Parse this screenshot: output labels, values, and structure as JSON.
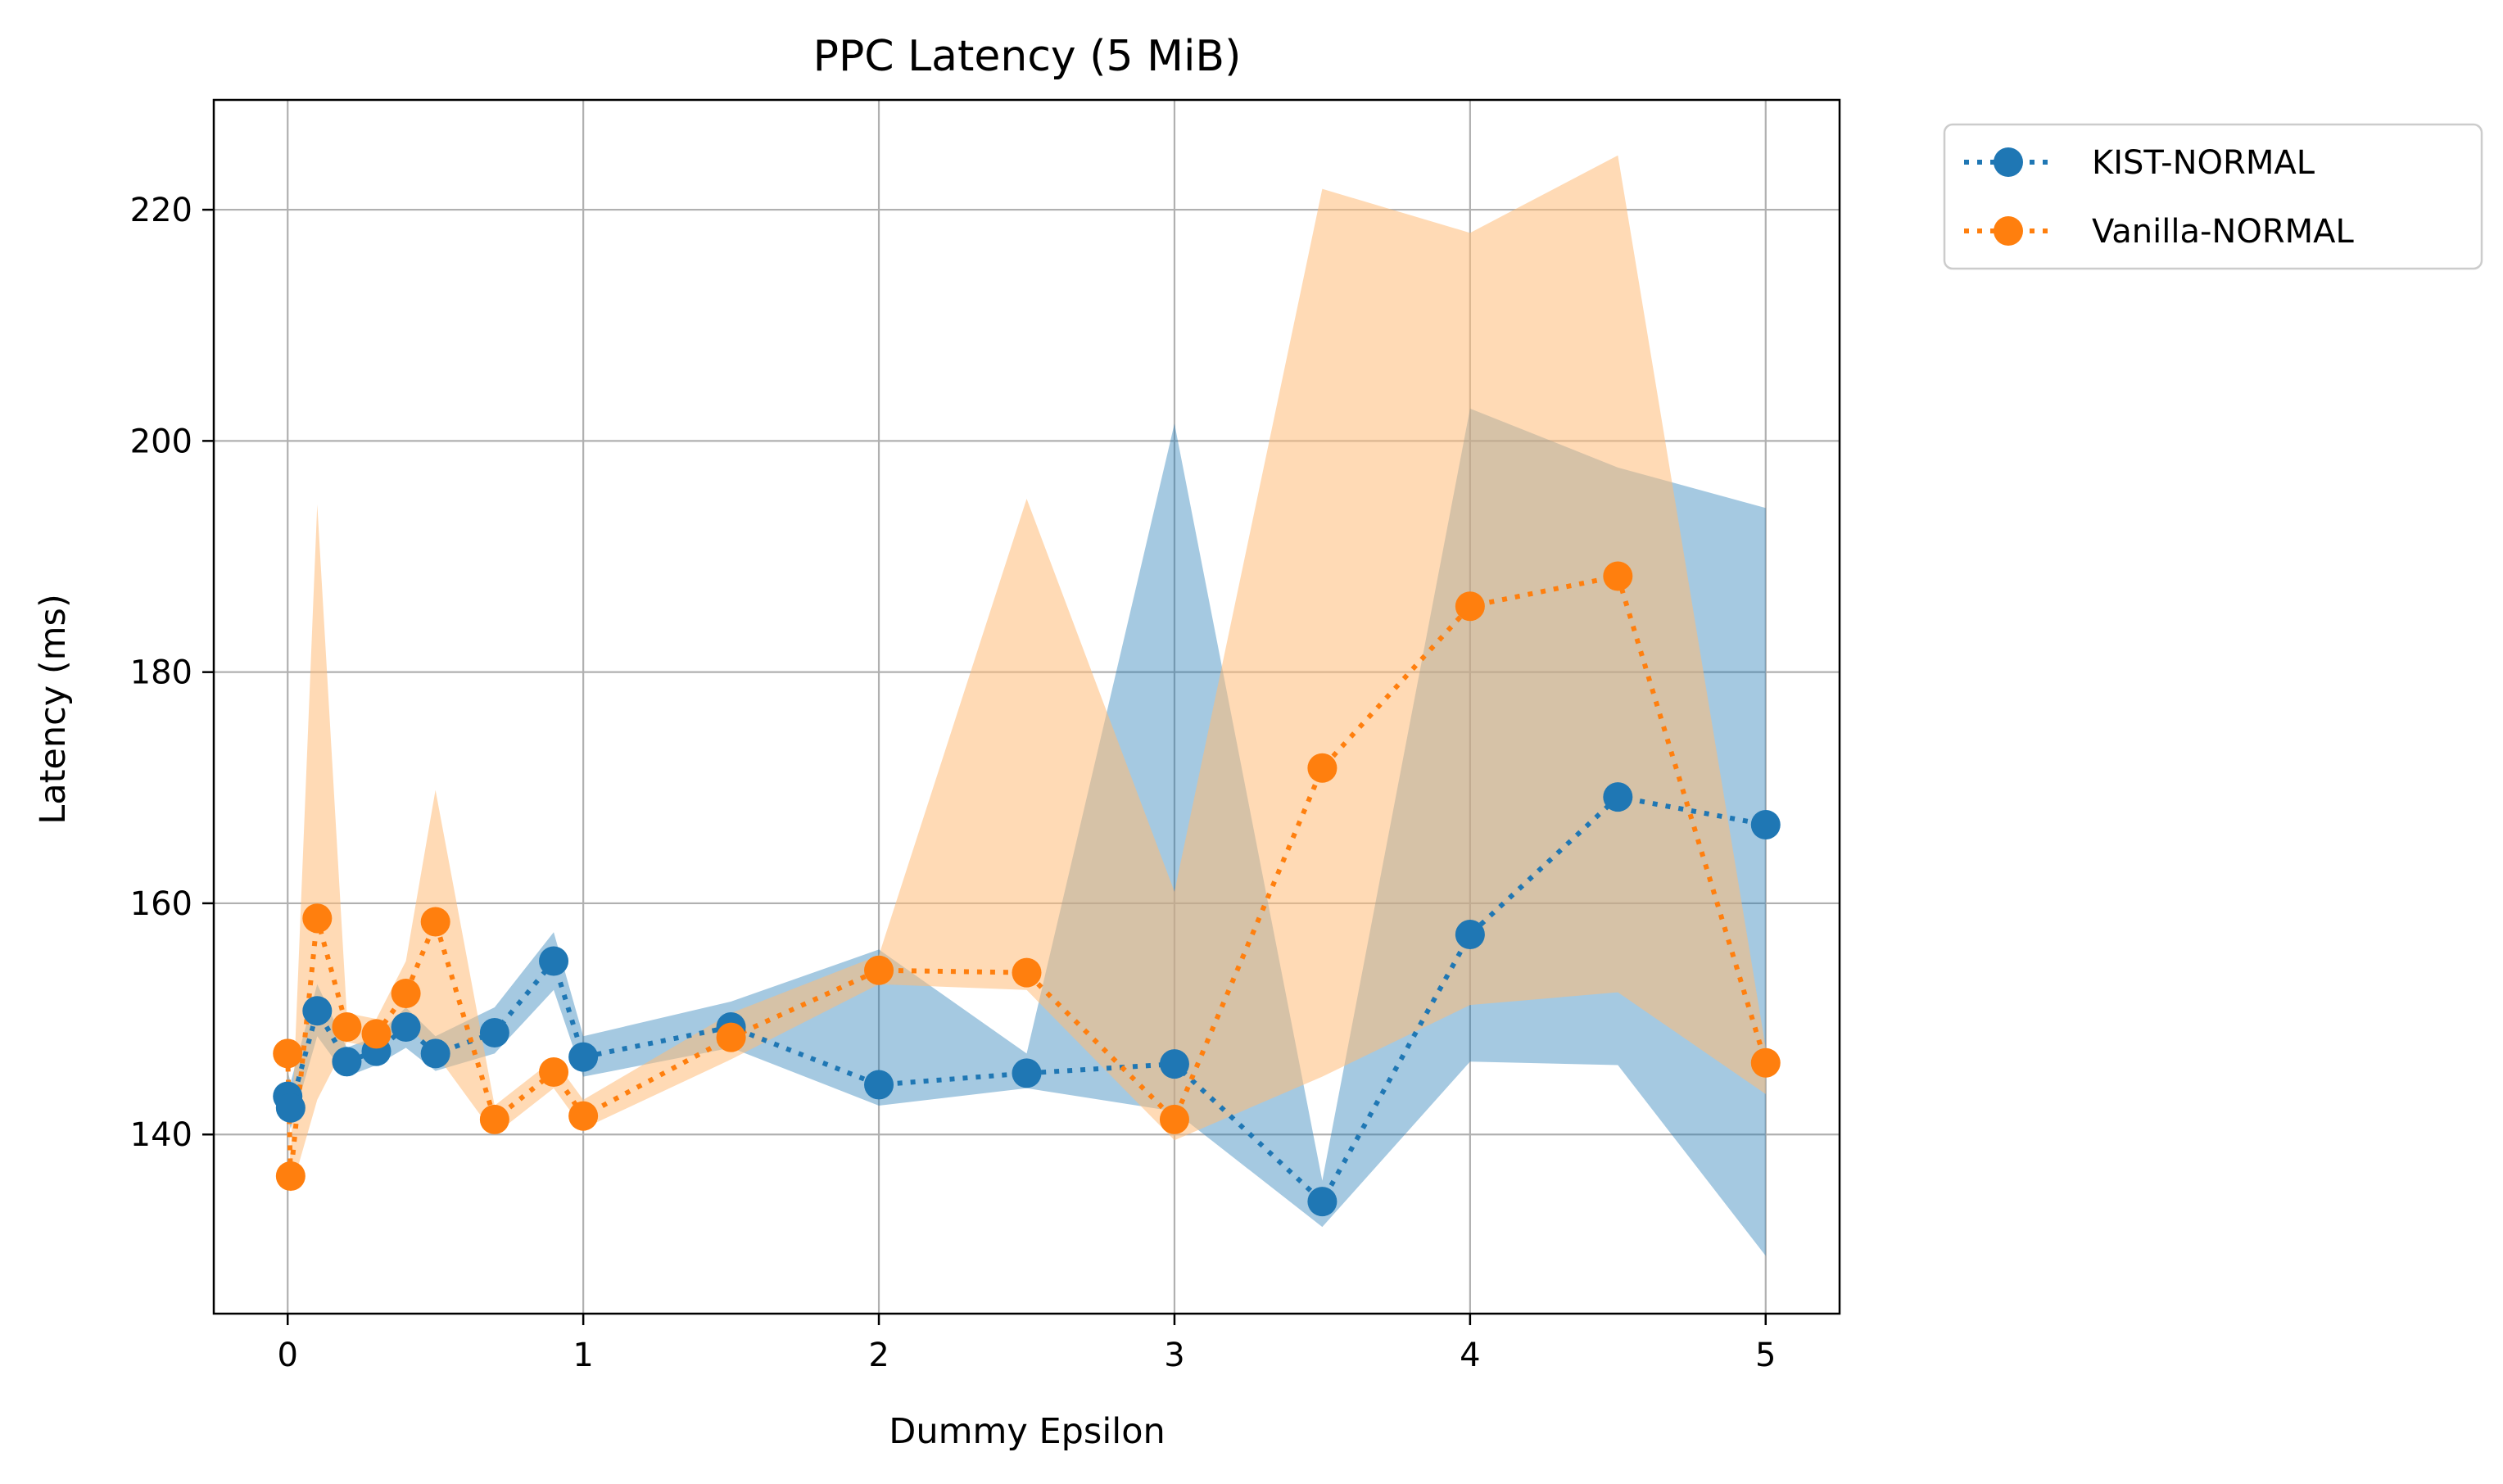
{
  "chart_data": {
    "type": "line",
    "title": "PPC Latency (5 MiB)",
    "xlabel": "Dummy Epsilon",
    "ylabel": "Latency (ms)",
    "xlim": [
      -0.25,
      5.25
    ],
    "ylim": [
      124.5,
      229.5
    ],
    "xticks": [
      0,
      1,
      2,
      3,
      4,
      5
    ],
    "yticks": [
      140,
      160,
      180,
      200,
      220
    ],
    "grid": true,
    "legend_position": "outside upper right",
    "series": [
      {
        "name": "KIST-NORMAL",
        "color": "#1f77b4",
        "band_color": "#1f77b4",
        "line_style": "dotted",
        "marker": "circle",
        "x": [
          0,
          0.01,
          0.1,
          0.2,
          0.3,
          0.4,
          0.5,
          0.7,
          0.9,
          1.0,
          1.5,
          2.0,
          2.5,
          3.0,
          3.5,
          4.0,
          4.5,
          5.0
        ],
        "y": [
          143.3,
          142.3,
          150.7,
          146.3,
          147.2,
          149.3,
          147.0,
          148.8,
          155.0,
          146.7,
          149.3,
          144.3,
          145.3,
          146.1,
          134.2,
          157.3,
          169.2,
          166.8
        ],
        "lower": [
          141.5,
          140.5,
          148.5,
          145.0,
          146.0,
          147.5,
          145.5,
          147.0,
          152.5,
          145.0,
          147.5,
          142.5,
          144.0,
          142.0,
          132.0,
          146.3,
          146.0,
          129.5
        ],
        "upper": [
          145.5,
          144.5,
          153.0,
          147.5,
          148.5,
          151.0,
          148.5,
          151.0,
          157.5,
          148.5,
          151.5,
          156.0,
          147.0,
          201.5,
          136.0,
          202.8,
          197.7,
          194.2
        ]
      },
      {
        "name": "Vanilla-NORMAL",
        "color": "#ff7f0e",
        "band_color": "#ffbb78",
        "line_style": "dotted",
        "marker": "circle",
        "x": [
          0,
          0.01,
          0.1,
          0.2,
          0.3,
          0.4,
          0.5,
          0.7,
          0.9,
          1.0,
          1.5,
          2.0,
          2.5,
          3.0,
          3.5,
          4.0,
          4.5,
          5.0
        ],
        "y": [
          147.0,
          136.4,
          158.7,
          149.3,
          148.7,
          152.2,
          158.4,
          141.3,
          145.4,
          141.6,
          148.4,
          154.2,
          154.0,
          141.3,
          171.7,
          185.7,
          188.3,
          146.2
        ],
        "lower": [
          145.5,
          135.0,
          143.0,
          148.0,
          147.5,
          149.5,
          147.0,
          140.0,
          144.0,
          140.5,
          146.5,
          153.0,
          152.5,
          139.5,
          145.0,
          151.2,
          152.3,
          143.5
        ],
        "upper": [
          148.5,
          138.0,
          194.5,
          150.5,
          150.0,
          155.0,
          169.8,
          142.5,
          146.5,
          143.0,
          150.5,
          155.5,
          195.0,
          161.0,
          221.8,
          218.0,
          224.7,
          147.5
        ]
      }
    ]
  }
}
